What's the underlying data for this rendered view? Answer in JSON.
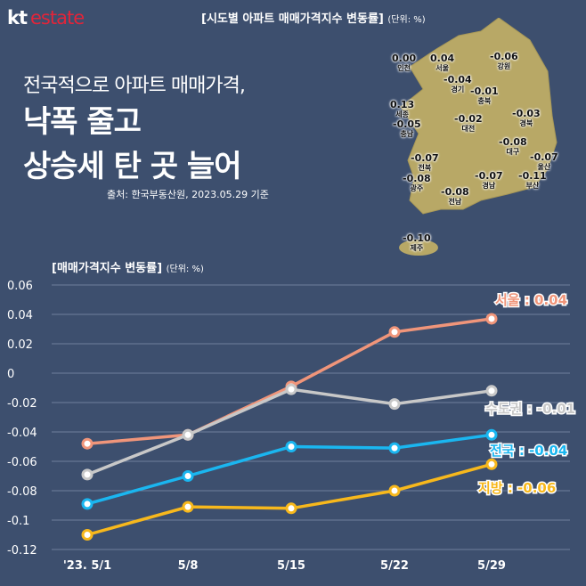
{
  "logo": {
    "kt": "kt",
    "estate": "estate"
  },
  "map": {
    "title": "[시도별 아파트 매매가격지수 변동률]",
    "unit": "(단위: %)",
    "regions": [
      {
        "name": "인천",
        "value": "0.00"
      },
      {
        "name": "서울",
        "value": "0.04"
      },
      {
        "name": "강원",
        "value": "-0.06"
      },
      {
        "name": "경기",
        "value": "-0.04"
      },
      {
        "name": "충북",
        "value": "-0.01"
      },
      {
        "name": "세종",
        "value": "0.13"
      },
      {
        "name": "충남",
        "value": "-0.05"
      },
      {
        "name": "대전",
        "value": "-0.02"
      },
      {
        "name": "경북",
        "value": "-0.03"
      },
      {
        "name": "대구",
        "value": "-0.08"
      },
      {
        "name": "울산",
        "value": "-0.07"
      },
      {
        "name": "전북",
        "value": "-0.07"
      },
      {
        "name": "광주",
        "value": "-0.08"
      },
      {
        "name": "전남",
        "value": "-0.08"
      },
      {
        "name": "경남",
        "value": "-0.07"
      },
      {
        "name": "부산",
        "value": "-0.11"
      },
      {
        "name": "제주",
        "value": "-0.10"
      }
    ]
  },
  "headline": {
    "line1": "전국적으로 아파트 매매가격,",
    "line2": "낙폭 줄고",
    "line3": "상승세 탄 곳 늘어",
    "source": "출처: 한국부동산원, 2023.05.29 기준"
  },
  "chart_data": {
    "type": "line",
    "title": "[매매가격지수 변동률]",
    "unit": "(단위: %)",
    "categories": [
      "'23. 5/1",
      "5/8",
      "5/15",
      "5/22",
      "5/29"
    ],
    "ylim": [
      -0.12,
      0.06
    ],
    "yticks": [
      "0.06",
      "0.04",
      "0.02",
      "0",
      "-0.02",
      "-0.04",
      "-0.06",
      "-0.08",
      "-0.1",
      "-0.12"
    ],
    "grid": true,
    "series": [
      {
        "name": "서울",
        "label": "서울 : 0.04",
        "color": "#f0957a",
        "values": [
          -0.048,
          -0.042,
          -0.009,
          0.028,
          0.037
        ]
      },
      {
        "name": "수도권",
        "label": "수도권 : -0.01",
        "color": "#c8c8c8",
        "values": [
          -0.069,
          -0.042,
          -0.011,
          -0.021,
          -0.012
        ]
      },
      {
        "name": "전국",
        "label": "전국 : -0.04",
        "color": "#1ab6f0",
        "values": [
          -0.089,
          -0.07,
          -0.05,
          -0.051,
          -0.042
        ]
      },
      {
        "name": "지방",
        "label": "지방 : -0.06",
        "color": "#f7b81c",
        "values": [
          -0.11,
          -0.091,
          -0.092,
          -0.08,
          -0.062
        ]
      }
    ]
  }
}
